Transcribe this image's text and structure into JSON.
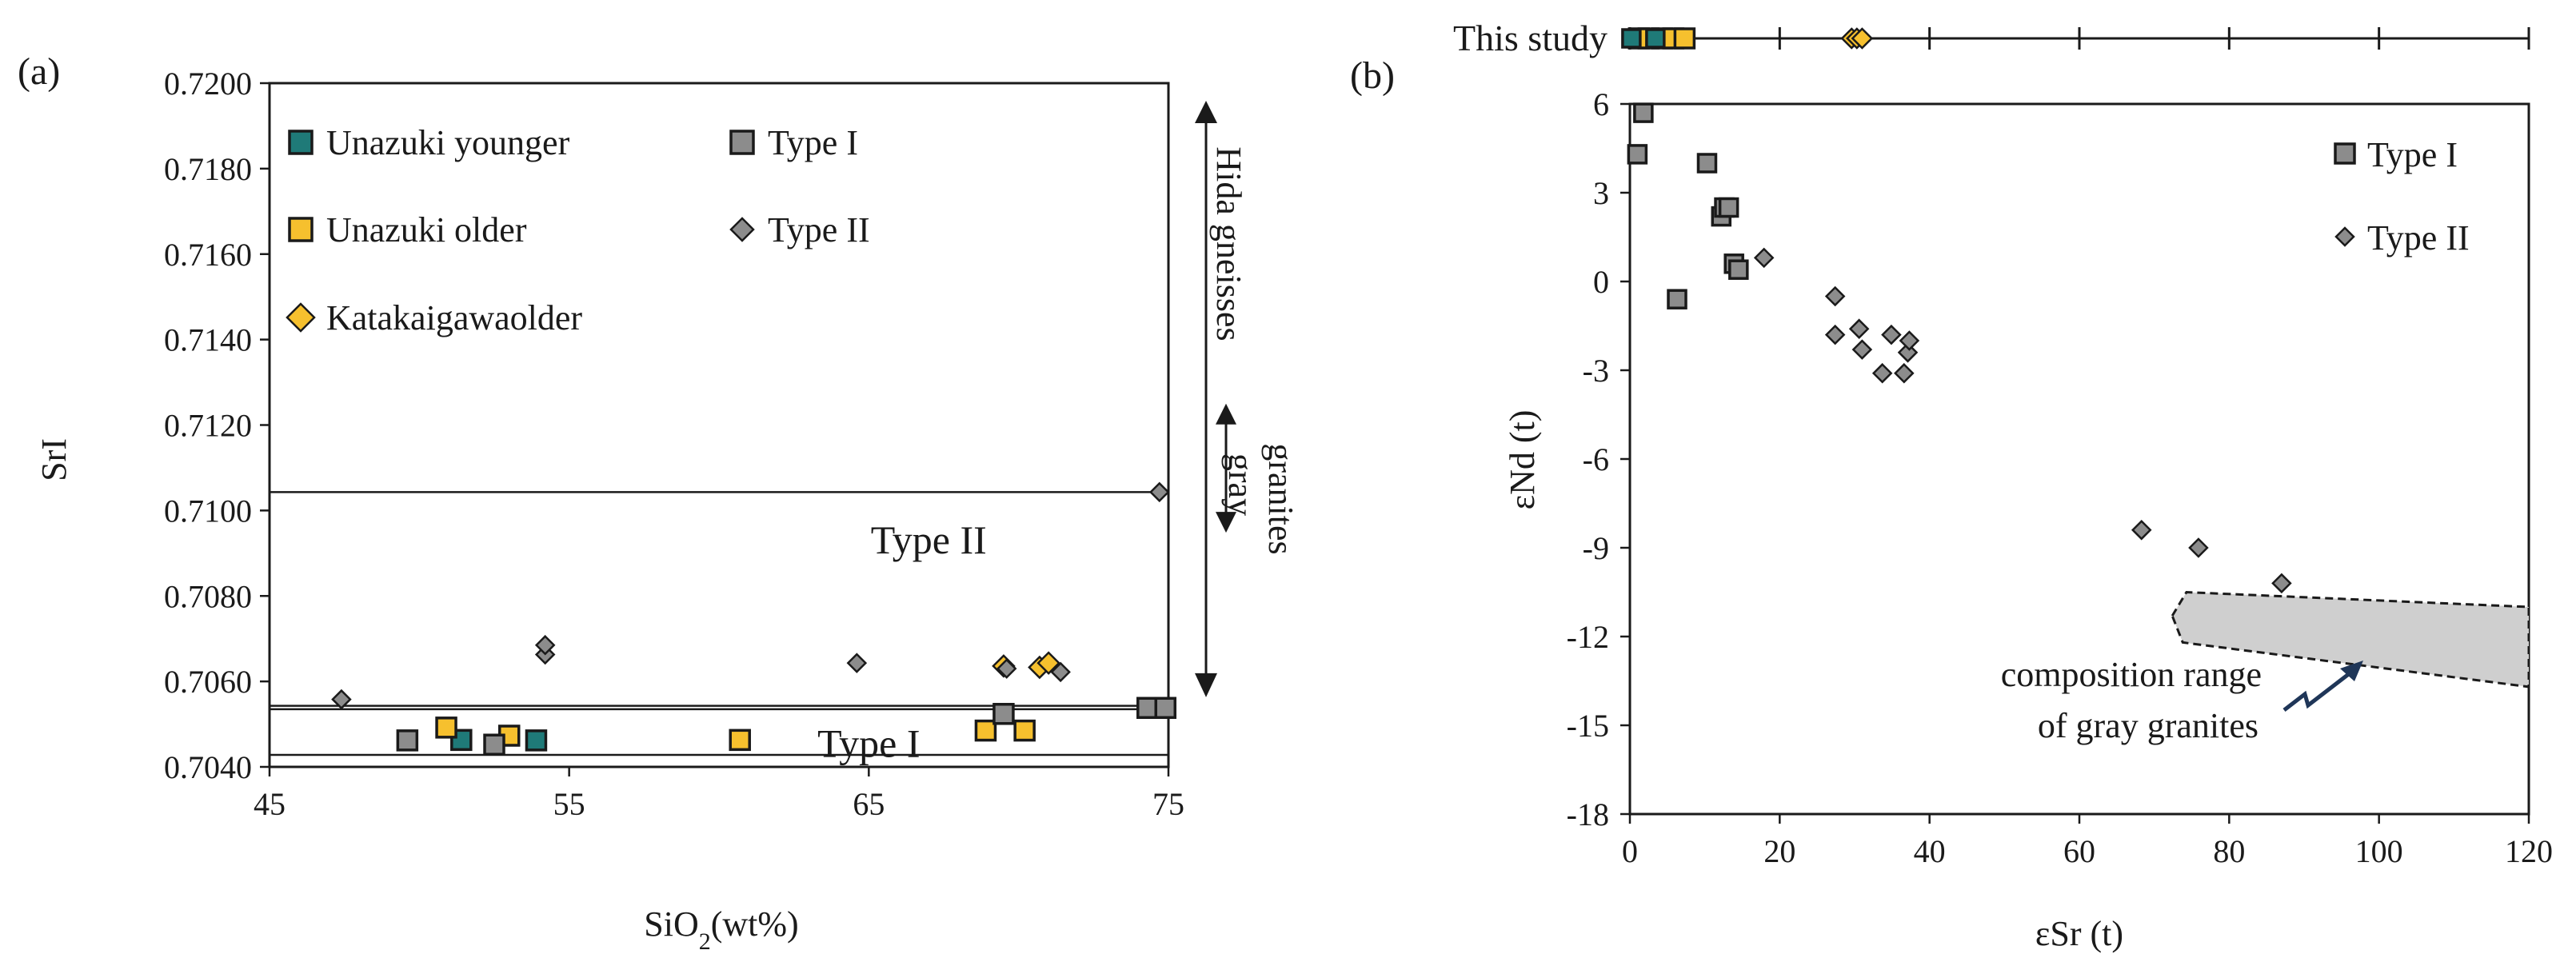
{
  "colors": {
    "unazuki_younger": "#1f7a78",
    "unazuki_older": "#f6c02e",
    "katakaigawa": "#f6c02e",
    "type_i": "#8c8c8c",
    "type_ii": "#8c8c8c",
    "gray_field": "#cfcfcf"
  },
  "chart_data": [
    {
      "type": "scatter",
      "panel": "(a)",
      "title": "",
      "xlabel": "SiO",
      "xlabel_sub": "2",
      "xlabel_tail": "(wt%)",
      "ylabel": "SrI",
      "xlim": [
        45,
        75
      ],
      "ylim": [
        0.704,
        0.72
      ],
      "xticks": [
        45,
        55,
        65,
        75
      ],
      "yticks": [
        "0.7040",
        "0.7060",
        "0.7080",
        "0.7100",
        "0.7120",
        "0.7140",
        "0.7160",
        "0.7180",
        "0.7200"
      ],
      "legend": [
        {
          "label": "Unazuki younger",
          "marker": "square",
          "series": "unazuki_younger"
        },
        {
          "label": "Unazuki older",
          "marker": "square",
          "series": "unazuki_older"
        },
        {
          "label": "Katakaigawaolder",
          "marker": "diamond",
          "series": "katakaigawa"
        },
        {
          "label": "Type I",
          "marker": "square",
          "series": "type_i"
        },
        {
          "label": "Type II",
          "marker": "diamond",
          "series": "type_ii"
        }
      ],
      "series": [
        {
          "name": "Unazuki younger",
          "key": "unazuki_younger",
          "marker": "square",
          "points": [
            [
              51.4,
              0.70463
            ],
            [
              53.9,
              0.70462
            ]
          ]
        },
        {
          "name": "Unazuki older",
          "key": "unazuki_older",
          "marker": "square",
          "points": [
            [
              50.9,
              0.70492
            ],
            [
              53.0,
              0.70473
            ],
            [
              60.7,
              0.70463
            ],
            [
              68.9,
              0.70485
            ],
            [
              70.2,
              0.70485
            ]
          ]
        },
        {
          "name": "Katakaigawaolder",
          "key": "katakaigawa",
          "marker": "diamond",
          "points": [
            [
              69.5,
              0.70636
            ],
            [
              70.7,
              0.70633
            ],
            [
              71.0,
              0.70643
            ]
          ]
        },
        {
          "name": "Type I",
          "key": "type_i",
          "marker": "square",
          "points": [
            [
              49.6,
              0.70462
            ],
            [
              52.5,
              0.70452
            ],
            [
              69.5,
              0.70524
            ],
            [
              74.3,
              0.70538
            ],
            [
              74.9,
              0.70538
            ]
          ]
        },
        {
          "name": "Type II",
          "key": "type_ii",
          "marker": "diamond",
          "points": [
            [
              47.4,
              0.70558
            ],
            [
              54.2,
              0.70663
            ],
            [
              54.2,
              0.70685
            ],
            [
              64.6,
              0.70643
            ],
            [
              69.6,
              0.7063
            ],
            [
              71.4,
              0.70622
            ],
            [
              74.7,
              0.71043
            ]
          ]
        }
      ],
      "ranges": [
        {
          "name": "Type II",
          "label": "Type II",
          "low": 0.70543,
          "high": 0.71043,
          "label_x": 67,
          "label_y": 0.709
        },
        {
          "name": "Type I",
          "label": "Type I",
          "low": 0.70428,
          "high": 0.70535,
          "label_x": 65,
          "label_y": 0.70423
        }
      ],
      "side_ranges": [
        {
          "name": "Hida gneisses",
          "label": "Hida gneisses",
          "low": 0.70578,
          "high": 0.72
        },
        {
          "name": "gray granites",
          "label_1": "gray",
          "label_2": "granites",
          "low": 0.70948,
          "high": 0.7125
        }
      ]
    },
    {
      "type": "scatter",
      "panel": "(b)",
      "title": "",
      "xlabel": "εSr (t)",
      "ylabel": "εNd (t)",
      "xlim": [
        0,
        120
      ],
      "ylim": [
        -18,
        6
      ],
      "xticks": [
        0,
        20,
        40,
        60,
        80,
        100,
        120
      ],
      "yticks": [
        -18,
        -15,
        -12,
        -9,
        -6,
        -3,
        0,
        3,
        6
      ],
      "legend": [
        {
          "label": "Type I",
          "marker": "square",
          "series": "type_i"
        },
        {
          "label": "Type II",
          "marker": "diamond",
          "series": "type_ii"
        }
      ],
      "series": [
        {
          "name": "Type I",
          "key": "type_i",
          "marker": "square",
          "points": [
            [
              1.0,
              4.3
            ],
            [
              1.8,
              5.7
            ],
            [
              10.3,
              4.0
            ],
            [
              12.2,
              2.2
            ],
            [
              12.6,
              2.5
            ],
            [
              13.2,
              2.5
            ],
            [
              13.9,
              0.6
            ],
            [
              14.5,
              0.4
            ],
            [
              6.3,
              -0.6
            ]
          ]
        },
        {
          "name": "Type II",
          "key": "type_ii",
          "marker": "diamond",
          "points": [
            [
              17.9,
              0.8
            ],
            [
              27.4,
              -0.5
            ],
            [
              27.4,
              -1.8
            ],
            [
              30.6,
              -1.6
            ],
            [
              31.0,
              -2.3
            ],
            [
              33.7,
              -3.1
            ],
            [
              34.9,
              -1.8
            ],
            [
              36.6,
              -3.1
            ],
            [
              37.1,
              -2.4
            ],
            [
              37.3,
              -2.0
            ],
            [
              68.3,
              -8.4
            ],
            [
              75.9,
              -9.0
            ],
            [
              87.0,
              -10.2
            ]
          ]
        }
      ],
      "field": {
        "name": "gray granites",
        "label_1": "composition range",
        "label_2": "of gray granites",
        "polygon": [
          [
            72.4,
            -11.3
          ],
          [
            74.3,
            -10.5
          ],
          [
            120,
            -11.0
          ],
          [
            120,
            -13.7
          ],
          [
            73.8,
            -12.2
          ]
        ]
      },
      "this_study": {
        "label": "This study",
        "unazuki_older_x": [
          1.2,
          2.5,
          4.3,
          5.8,
          7.3
        ],
        "unazuki_younger_x": [
          0.2,
          3.4
        ],
        "katakaigawa_x": [
          29.6,
          30.3,
          31.0
        ]
      }
    }
  ]
}
